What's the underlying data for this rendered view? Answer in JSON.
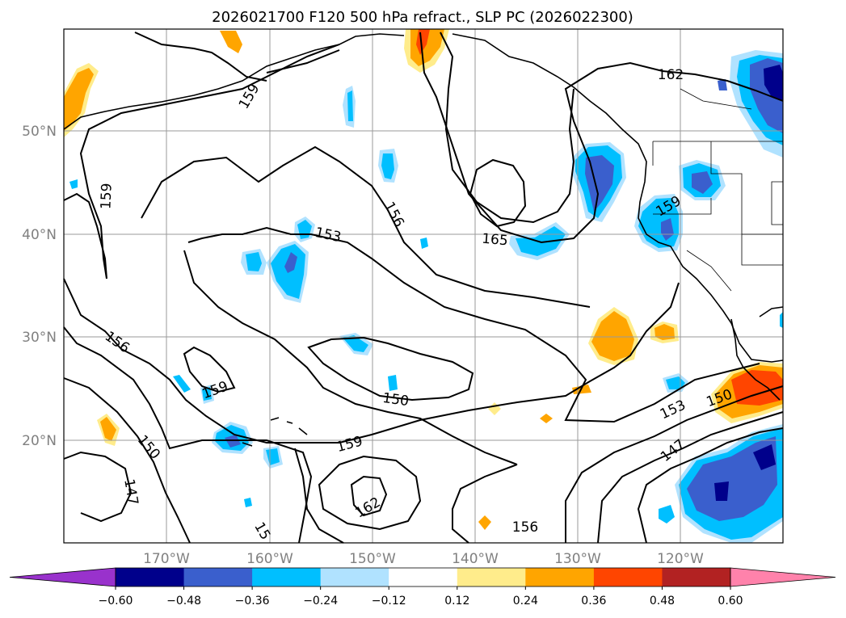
{
  "title": "2026021700 F120 500 hPa refract., SLP PC (2026022300)",
  "map": {
    "lat_labels": [
      "50°N",
      "40°N",
      "30°N",
      "20°N"
    ],
    "lon_labels": [
      "170°W",
      "160°W",
      "150°W",
      "140°W",
      "130°W",
      "120°W"
    ],
    "contour_labels": [
      "159",
      "162",
      "159",
      "153",
      "156",
      "165",
      "159",
      "156",
      "159",
      "150",
      "150",
      "147",
      "159",
      "162",
      "156",
      "153",
      "150",
      "147",
      "15"
    ]
  },
  "colorbar": {
    "ticks": [
      "−0.60",
      "−0.48",
      "−0.36",
      "−0.24",
      "−0.12",
      "0.12",
      "0.24",
      "0.36",
      "0.48",
      "0.60"
    ],
    "colors": [
      "#9932cc",
      "#00008b",
      "#3a5fcd",
      "#00bfff",
      "#b0e2ff",
      "#ffffff",
      "#ffec8b",
      "#ffa500",
      "#ff4500",
      "#b22222",
      "#ff82ab"
    ]
  }
}
